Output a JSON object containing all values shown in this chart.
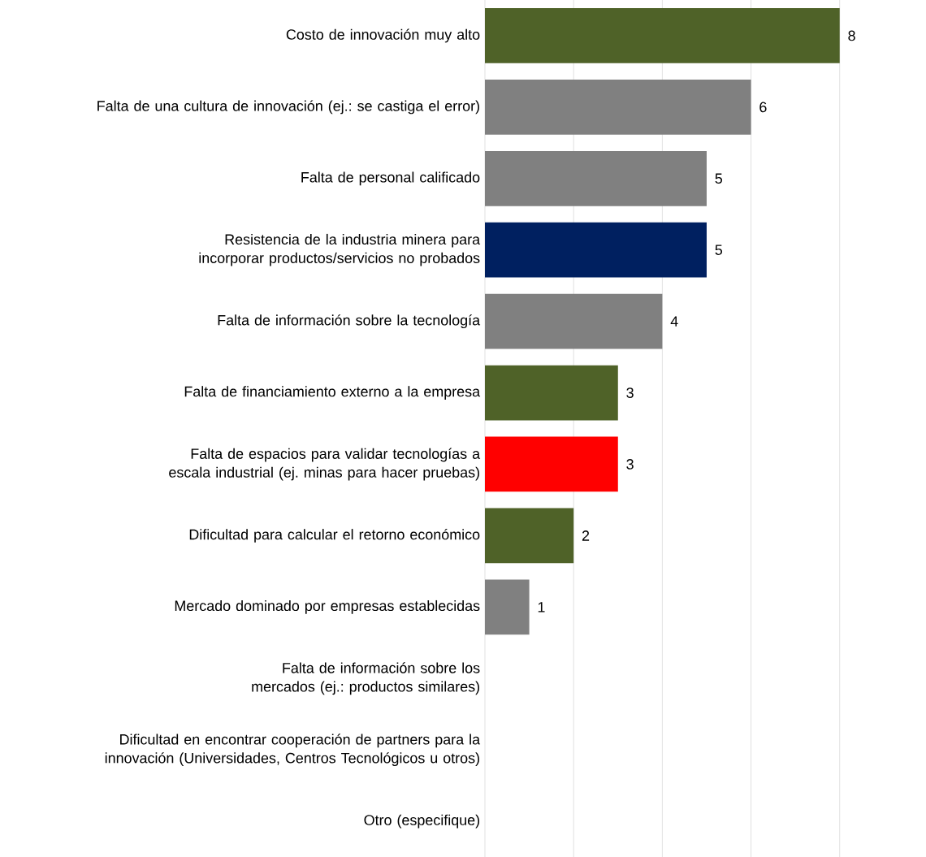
{
  "chart_data": {
    "type": "bar",
    "orientation": "horizontal",
    "categories": [
      "Costo de innovación muy alto",
      "Falta de una cultura de innovación (ej.: se castiga el error)",
      "Falta de personal calificado",
      "Resistencia de la industria minera para incorporar productos/servicios no probados",
      "Falta de información sobre la tecnología",
      "Falta de financiamiento externo a la empresa",
      "Falta de espacios para validar tecnologías a escala industrial (ej. minas para hacer pruebas)",
      "Dificultad para calcular el retorno económico",
      "Mercado dominado por empresas establecidas",
      "Falta de información sobre los mercados (ej.: productos similares)",
      "Dificultad en encontrar cooperación de partners para la innovación (Universidades, Centros Tecnológicos u otros)",
      "Otro (especifique)"
    ],
    "values": [
      8,
      6,
      5,
      5,
      4,
      3,
      3,
      2,
      1,
      null,
      null,
      null
    ],
    "colors": [
      "#4f6228",
      "#808080",
      "#808080",
      "#002060",
      "#808080",
      "#4f6228",
      "#ff0000",
      "#4f6228",
      "#808080",
      "#808080",
      "#808080",
      "#808080"
    ],
    "data_labels": true,
    "xticks": [
      {
        "value": 0,
        "label": null
      },
      {
        "value": 2,
        "label": null
      },
      {
        "value": 4,
        "label": null
      },
      {
        "value": 6,
        "label": null
      },
      {
        "value": 8,
        "label": null
      }
    ],
    "grid": "x",
    "tick_labels": "y"
  }
}
